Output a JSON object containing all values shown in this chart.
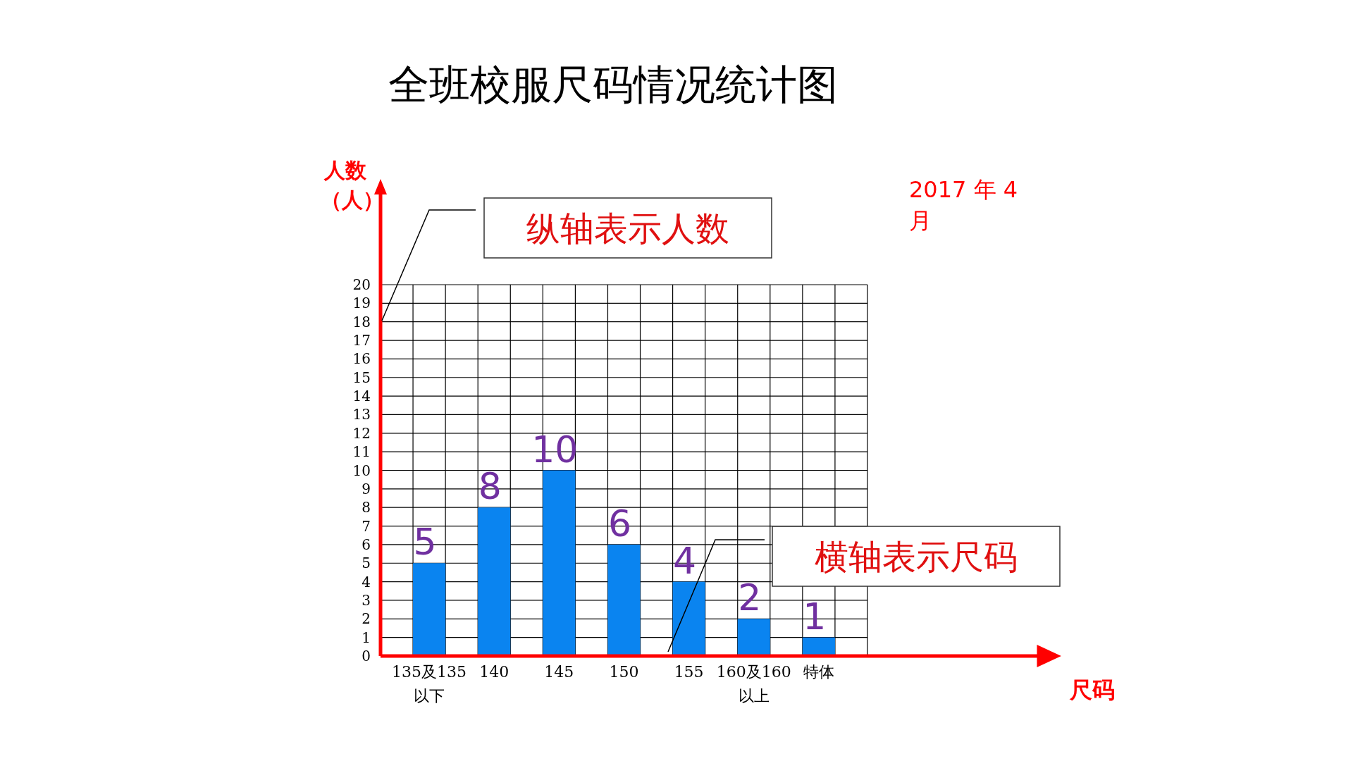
{
  "chart_data": {
    "type": "bar",
    "title": "全班校服尺码情况统计图",
    "ylabel": "人数（人）",
    "categories": [
      "135及135以下",
      "140",
      "145",
      "150",
      "155",
      "160及160以上",
      "特体"
    ],
    "values": [
      5,
      8,
      10,
      6,
      4,
      2,
      1
    ],
    "color": "#0a84f0",
    "ylim": [
      0,
      20
    ],
    "yticks": [
      0,
      1,
      2,
      3,
      4,
      5,
      6,
      7,
      8,
      9,
      10,
      11,
      12,
      13,
      14,
      15,
      16,
      17,
      18,
      19,
      20
    ],
    "grid": true,
    "data_labels": true,
    "annotations": [
      "2017 年 4 月",
      "纵轴表示人数",
      "横轴表示尺码",
      "尺码"
    ]
  }
}
